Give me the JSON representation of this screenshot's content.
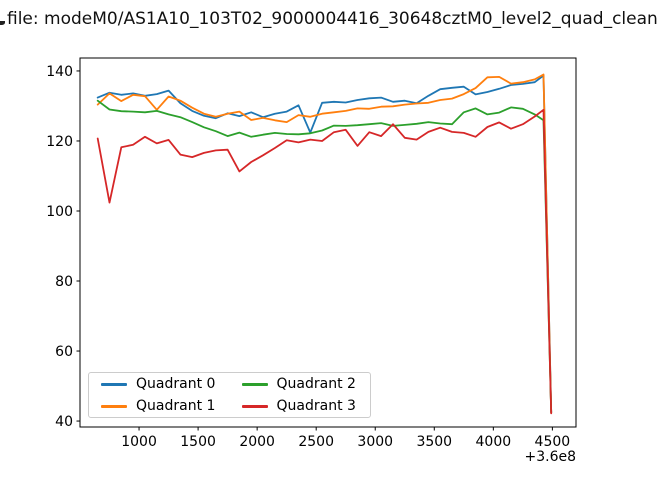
{
  "chart_data": {
    "type": "line",
    "title": "file: modeM0/AS1A10_103T02_9000004416_30648cztM0_level2_quad_clean",
    "title_truncated_left": true,
    "title_truncated_right": true,
    "x_offset_label": "+3.6e8",
    "xlim": [
      500,
      4700
    ],
    "ylim": [
      38.3,
      143.7
    ],
    "x_ticks": [
      1000,
      1500,
      2000,
      2500,
      3000,
      3500,
      4000,
      4500
    ],
    "y_ticks": [
      40,
      60,
      80,
      100,
      120,
      140
    ],
    "grid": false,
    "legend_position": "lower left",
    "legend_columns": 2,
    "x": [
      650,
      750,
      850,
      950,
      1050,
      1150,
      1250,
      1350,
      1450,
      1550,
      1650,
      1750,
      1850,
      1950,
      2050,
      2150,
      2250,
      2350,
      2450,
      2550,
      2650,
      2750,
      2850,
      2950,
      3050,
      3150,
      3250,
      3350,
      3450,
      3550,
      3650,
      3750,
      3850,
      3950,
      4050,
      4150,
      4250,
      4350,
      4425,
      4490
    ],
    "series": [
      {
        "name": "Quadrant 0",
        "color": "#1f77b4",
        "values": [
          132.4,
          133.8,
          133.2,
          133.6,
          132.9,
          133.4,
          134.4,
          130.8,
          128.6,
          127.2,
          126.5,
          127.9,
          127.1,
          128.2,
          126.8,
          127.8,
          128.4,
          130.2,
          122.4,
          130.9,
          131.2,
          131.0,
          131.7,
          132.2,
          132.4,
          131.2,
          131.5,
          130.8,
          132.9,
          134.8,
          135.2,
          135.5,
          133.3,
          134.0,
          134.9,
          136.0,
          136.3,
          136.8,
          138.7,
          42.4
        ]
      },
      {
        "name": "Quadrant 1",
        "color": "#ff7f0e",
        "values": [
          130.4,
          133.6,
          131.4,
          133.2,
          132.8,
          128.9,
          132.7,
          131.5,
          129.5,
          127.8,
          126.9,
          127.8,
          128.4,
          126.0,
          126.6,
          125.9,
          125.4,
          127.4,
          126.9,
          127.8,
          128.2,
          128.6,
          129.3,
          129.2,
          129.8,
          129.9,
          130.4,
          130.7,
          130.9,
          131.7,
          132.1,
          133.4,
          135.1,
          138.2,
          138.3,
          136.4,
          136.8,
          137.6,
          139.0,
          42.3
        ]
      },
      {
        "name": "Quadrant 2",
        "color": "#2ca02c",
        "values": [
          131.5,
          129.0,
          128.5,
          128.4,
          128.2,
          128.6,
          127.6,
          126.8,
          125.4,
          123.9,
          122.8,
          121.4,
          122.4,
          121.2,
          121.8,
          122.3,
          122.0,
          121.9,
          122.2,
          123.0,
          124.4,
          124.3,
          124.5,
          124.8,
          125.1,
          124.3,
          124.6,
          124.9,
          125.4,
          125.0,
          124.8,
          128.2,
          129.3,
          127.6,
          128.1,
          129.6,
          129.2,
          127.6,
          125.9,
          42.5
        ]
      },
      {
        "name": "Quadrant 3",
        "color": "#d62728",
        "values": [
          120.7,
          102.4,
          118.2,
          118.9,
          121.2,
          119.3,
          120.3,
          116.1,
          115.4,
          116.6,
          117.3,
          117.5,
          111.3,
          114.0,
          115.9,
          118.0,
          120.2,
          119.6,
          120.4,
          120.0,
          122.5,
          123.2,
          118.6,
          122.5,
          121.4,
          124.8,
          120.9,
          120.4,
          122.6,
          123.8,
          122.6,
          122.3,
          121.2,
          124.0,
          125.3,
          123.5,
          124.8,
          127.0,
          128.9,
          42.2
        ]
      }
    ]
  }
}
